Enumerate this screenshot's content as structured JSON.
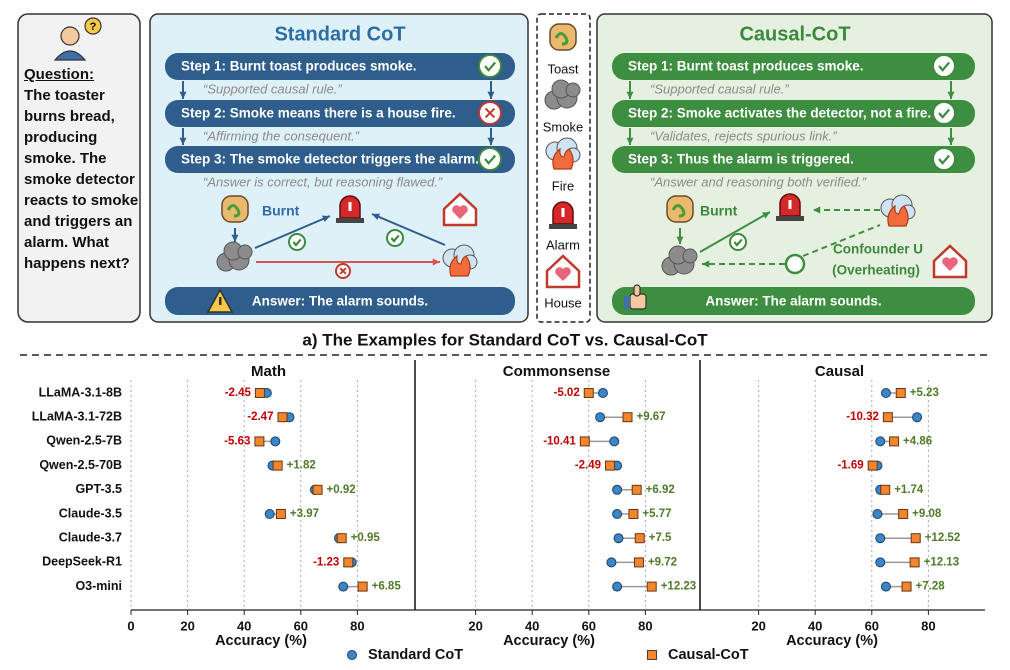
{
  "question": {
    "label": "Question:",
    "text": "The toaster burns bread, producing smoke. The smoke detector reacts to smoke and triggers an alarm. What happens next?"
  },
  "standard": {
    "title": "Standard CoT",
    "steps": [
      {
        "text": "Step 1: Burnt toast produces smoke.",
        "note": "“Supported causal rule.”"
      },
      {
        "text": "Step 2: Smoke means there is a house fire.",
        "note": "“Affirming the consequent.”"
      },
      {
        "text": "Step 3: The smoke detector triggers the alarm.",
        "note": "“Answer is correct, but reasoning flawed.”"
      }
    ],
    "burnt": "Burnt",
    "answer": "Answer: The alarm sounds."
  },
  "icons_legend": [
    "Toast",
    "Smoke",
    "Fire",
    "Alarm",
    "House"
  ],
  "causal": {
    "title": "Causal-CoT",
    "steps": [
      {
        "text": "Step 1: Burnt toast produces smoke.",
        "note": "“Supported causal rule.”"
      },
      {
        "text": "Step 2: Smoke activates the detector, not a fire.",
        "note": "“Validates, rejects spurious link.”"
      },
      {
        "text": "Step 3: Thus the alarm is triggered.",
        "note": "“Answer and reasoning both verified.”"
      }
    ],
    "burnt": "Burnt",
    "confounder": "Confounder U",
    "confounder_note": "(Overheating)",
    "answer": "Answer: The alarm sounds."
  },
  "caption": "a) The Examples for Standard CoT vs. Causal-CoT",
  "chart_data": {
    "type": "dot",
    "categories": [
      "LLaMA-3.1-8B",
      "LLaMA-3.1-72B",
      "Qwen-2.5-7B",
      "Qwen-2.5-70B",
      "GPT-3.5",
      "Claude-3.5",
      "Claude-3.7",
      "DeepSeek-R1",
      "O3-mini"
    ],
    "legend": [
      {
        "name": "Standard CoT",
        "color": "#3a86c8"
      },
      {
        "name": "Causal-CoT",
        "color": "#f0862e"
      }
    ],
    "xlabel": "Accuracy (%)",
    "xlim": [
      0,
      100
    ],
    "grid": true,
    "delta_colors": {
      "negative": "#c00000",
      "positive": "#4f7a28"
    },
    "panels": [
      {
        "title": "Math",
        "xticks": [
          0,
          20,
          40,
          60,
          80
        ],
        "series": [
          {
            "values": [
              48,
              56,
              51,
              50,
              65,
              49,
              73.5,
              78,
              75
            ]
          },
          {
            "values": [
              45.55,
              53.53,
              45.37,
              51.82,
              65.92,
              52.97,
              74.45,
              76.77,
              81.85
            ]
          }
        ],
        "delta_labels": [
          "-2.45",
          "-2.47",
          "-5.63",
          "+1.82",
          "+0.92",
          "+3.97",
          "+0.95",
          "-1.23",
          "+6.85"
        ]
      },
      {
        "title": "Commonsense",
        "xticks": [
          20,
          40,
          60,
          80
        ],
        "series": [
          {
            "values": [
              65,
              64,
              69,
              70,
              70,
              70,
              70.5,
              68,
              70
            ]
          },
          {
            "values": [
              59.98,
              73.67,
              58.59,
              67.51,
              76.92,
              75.77,
              78,
              77.72,
              82.23
            ]
          }
        ],
        "delta_labels": [
          "-5.02",
          "+9.67",
          "-10.41",
          "-2.49",
          "+6.92",
          "+5.77",
          "+7.5",
          "+9.72",
          "+12.23"
        ]
      },
      {
        "title": "Causal",
        "xticks": [
          20,
          40,
          60,
          80
        ],
        "series": [
          {
            "values": [
              65,
              76,
              63,
              62,
              63,
              62,
              63,
              63,
              65
            ]
          },
          {
            "values": [
              70.23,
              65.68,
              67.86,
              60.31,
              64.74,
              71.08,
              75.52,
              75.13,
              72.28
            ]
          }
        ],
        "delta_labels": [
          "+5.23",
          "-10.32",
          "+4.86",
          "-1.69",
          "+1.74",
          "+9.08",
          "+12.52",
          "+12.13",
          "+7.28"
        ]
      }
    ]
  }
}
